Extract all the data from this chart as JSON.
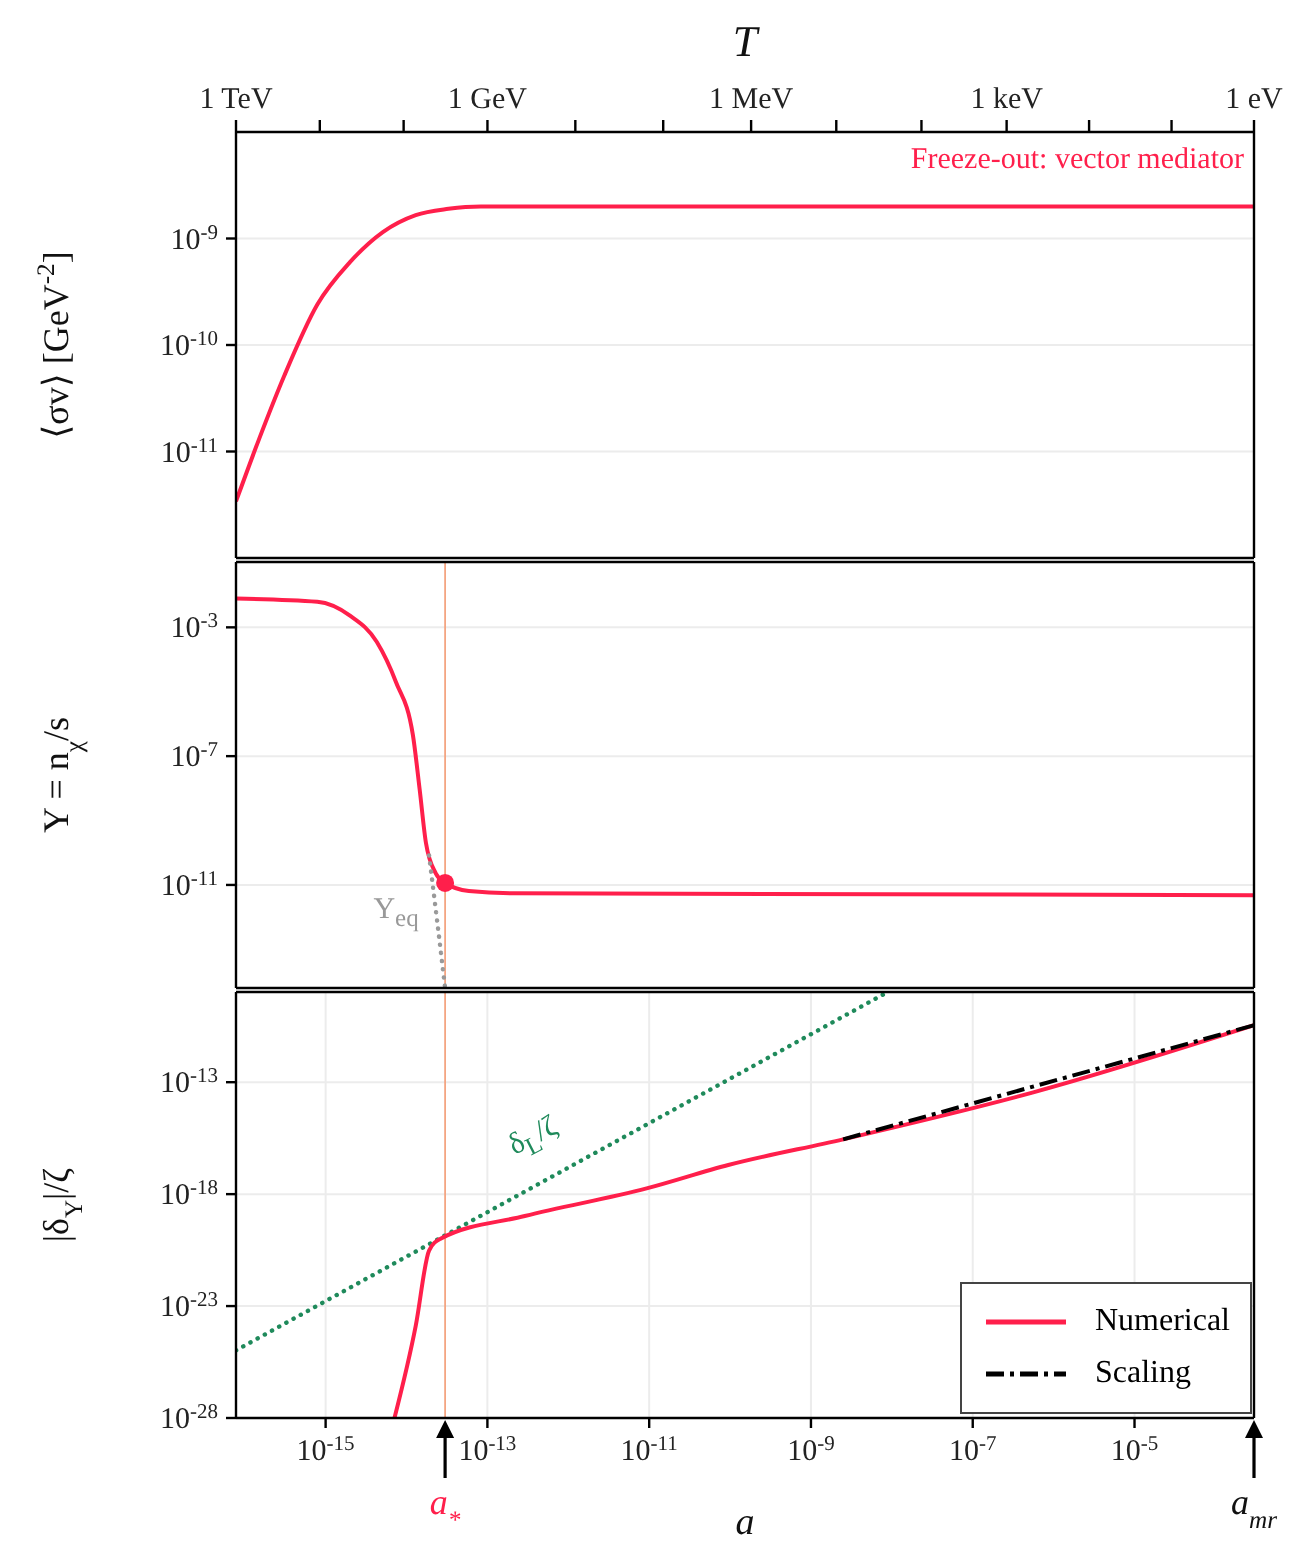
{
  "chart_data": [
    {
      "type": "line",
      "x2label": "T",
      "ylabel": "⟨σv⟩ [GeV$^{-2}$]",
      "annotations": [
        "Freeze-out: vector mediator",
        "1 TeV",
        "1 GeV",
        "1 MeV",
        "1 keV",
        "1 eV"
      ],
      "log": "xy",
      "grid": true,
      "tick_labels": "y",
      "xlim": [
        7.8e-17,
        0.0003
      ],
      "xticks": [
        {
          "value": 1e-15,
          "label": null
        },
        {
          "value": 1e-13,
          "label": null
        },
        {
          "value": 1e-11,
          "label": null
        },
        {
          "value": 1e-09,
          "label": null
        },
        {
          "value": 1e-07,
          "label": null
        },
        {
          "value": 1e-05,
          "label": null
        }
      ],
      "ylim": [
        1e-12,
        1e-08
      ],
      "yticks": [
        {
          "value": 1e-11,
          "label": "10$^{-11}$"
        },
        {
          "value": 1e-10,
          "label": "10$^{-10}$"
        },
        {
          "value": 1e-09,
          "label": "10$^{-9}$"
        }
      ],
      "series": [
        {
          "color": "#ff1f4b",
          "x": [
            7.8e-17,
            1.5e-16,
            3.1e-16,
            7.9e-16,
            2e-15,
            5.1e-15,
            1.3e-14,
            3.3e-14,
            8.3e-14,
            0.0003
          ],
          "values": [
            3.4e-12,
            1.3e-11,
            5.2e-11,
            2.4e-10,
            6e-10,
            1.15e-09,
            1.66e-09,
            1.9e-09,
            2e-09,
            2e-09
          ]
        }
      ]
    },
    {
      "type": "line",
      "ylabel": "Y = n$_{χ}$/s",
      "log": "xy",
      "grid": true,
      "tick_labels": "y",
      "xlim": [
        7.8e-17,
        0.0003
      ],
      "xticks": [
        {
          "value": 1e-15,
          "label": null
        },
        {
          "value": 1e-13,
          "label": null
        },
        {
          "value": 1e-11,
          "label": null
        },
        {
          "value": 1e-09,
          "label": null
        },
        {
          "value": 1e-07,
          "label": null
        },
        {
          "value": 1e-05,
          "label": null
        }
      ],
      "ylim": [
        6.3e-15,
        0.107
      ],
      "yticks": [
        {
          "value": 1e-11,
          "label": "10$^{-11}$"
        },
        {
          "value": 1e-07,
          "label": "10$^{-7}$"
        },
        {
          "value": 0.001,
          "label": "10$^{-3}$"
        }
      ],
      "ref_lines": [
        {
          "axis": "x",
          "value": 3e-14,
          "color": "#f4a582"
        }
      ],
      "annotations": [
        "Y$_{eq}$"
      ],
      "series": [
        {
          "color": "#ff1f4b",
          "x": [
            7.8e-17,
            7.9e-16,
            2e-15,
            4.3e-15,
            7.4e-15,
            1.2e-14,
            1.45e-14,
            1.74e-14,
            2.3e-14,
            3e-14,
            5.9e-14,
            2.1e-13,
            0.0003
          ],
          "values": [
            0.0078,
            0.0062,
            0.0023,
            0.00035,
            2e-05,
            4.5e-07,
            9.8e-09,
            2e-10,
            2.3e-11,
            1.15e-11,
            6.5e-12,
            5.5e-12,
            4.8e-12
          ]
        },
        {
          "color": "#999999",
          "line_style": "dotted",
          "x": [
            1.9e-14,
            2.4e-14,
            3e-14
          ],
          "values": [
            8.3e-11,
            7.1e-13,
            6.3e-15
          ]
        },
        {
          "type": "scatter",
          "marker": "circle",
          "color": "#ff1f4b",
          "x": [
            3e-14
          ],
          "values": [
            1.15e-11
          ]
        }
      ]
    },
    {
      "type": "line",
      "xlabel": "a",
      "ylabel": "|δ$_{Y}$|/ζ",
      "log": "xy",
      "grid": true,
      "legend": "bottom right",
      "xlim": [
        7.8e-17,
        0.0003
      ],
      "xticks": [
        {
          "value": 1e-15,
          "label": "10$^{-15}$"
        },
        {
          "value": 1e-13,
          "label": "10$^{-13}$"
        },
        {
          "value": 1e-11,
          "label": "10$^{-11}$"
        },
        {
          "value": 1e-09,
          "label": "10$^{-9}$"
        },
        {
          "value": 1e-07,
          "label": "10$^{-7}$"
        },
        {
          "value": 1e-05,
          "label": "10$^{-5}$"
        }
      ],
      "ylim": [
        1e-28,
        1.07e-09
      ],
      "yticks": [
        {
          "value": 1e-28,
          "label": "10$^{-28}$"
        },
        {
          "value": 1e-23,
          "label": "10$^{-23}$"
        },
        {
          "value": 1e-18,
          "label": "10$^{-18}$"
        },
        {
          "value": 1e-13,
          "label": "10$^{-13}$"
        }
      ],
      "ref_lines": [
        {
          "axis": "x",
          "value": 3e-14,
          "color": "#f4a582"
        }
      ],
      "annotations": [
        "δ$_{L}$/ζ",
        "a$_{*}$",
        "a$_{mr}$"
      ],
      "series": [
        {
          "color": "#1f8a5b",
          "line_style": "dotted",
          "x": [
            7.8e-17,
            8.9e-09
          ],
          "values": [
            1.05e-25,
            1.07e-09
          ]
        },
        {
          "name": "Numerical",
          "color": "#ff1f4b",
          "line_style": "solid",
          "x": [
            7.1e-15,
            1.3e-14,
            1.9e-14,
            2.6e-14,
            2.9e-13,
            9.3e-12,
            9.5e-11,
            2.5e-09,
            5.6e-07,
            0.0003
          ],
          "values": [
            1e-28,
            1.3e-24,
            3e-21,
            1e-20,
            1.05e-19,
            1.8e-18,
            2e-17,
            2.8e-16,
            3.5e-14,
            3.5e-11
          ]
        },
        {
          "name": "Scaling",
          "color": "#000000",
          "line_style": "dashdot",
          "x": [
            2.5e-09,
            0.0003
          ],
          "values": [
            2.8e-16,
            3.5e-11
          ]
        }
      ]
    }
  ]
}
